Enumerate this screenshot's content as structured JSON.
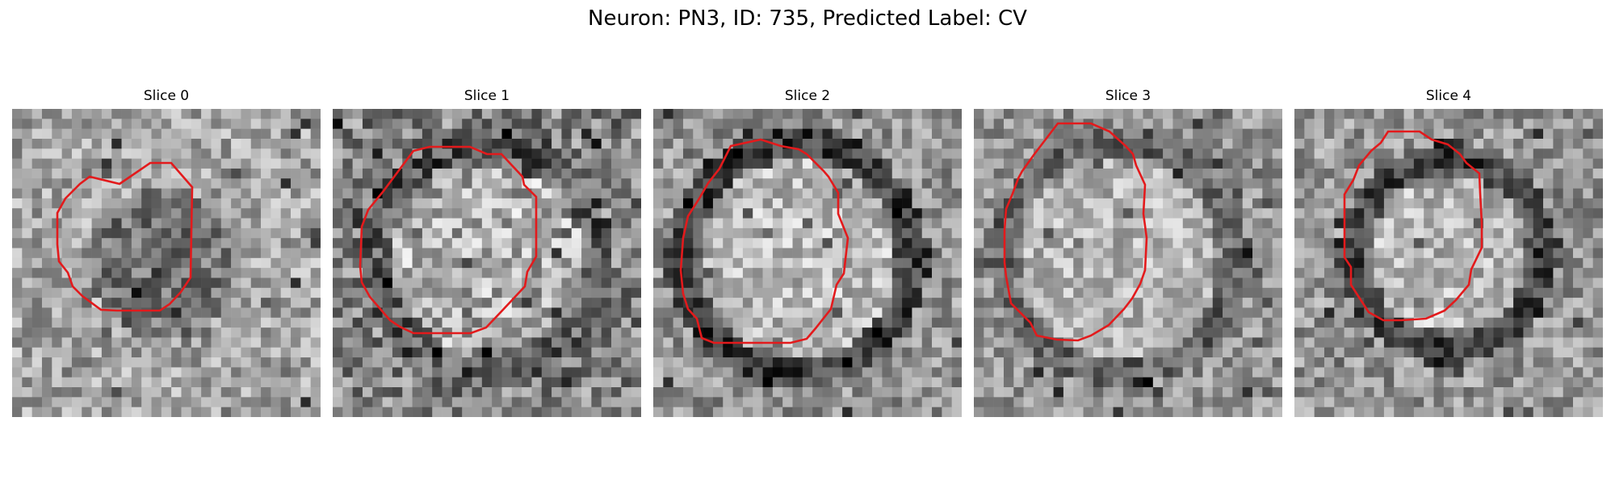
{
  "figure": {
    "title": "Neuron: PN3, ID: 735, Predicted Label: CV"
  },
  "panels": [
    {
      "title": "Slice 0",
      "contour_color": "#e31a1c",
      "brightness": "light-mottled",
      "ring": "faint"
    },
    {
      "title": "Slice 1",
      "contour_color": "#e31a1c",
      "brightness": "dark-mottled",
      "ring": "medium"
    },
    {
      "title": "Slice 2",
      "contour_color": "#e31a1c",
      "brightness": "light-center",
      "ring": "dark"
    },
    {
      "title": "Slice 3",
      "contour_color": "#e31a1c",
      "brightness": "light-center",
      "ring": "medium"
    },
    {
      "title": "Slice 4",
      "contour_color": "#e31a1c",
      "brightness": "light-center",
      "ring": "dark"
    }
  ]
}
